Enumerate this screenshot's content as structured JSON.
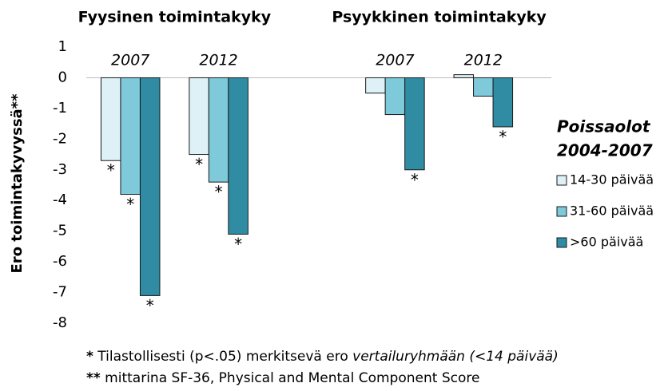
{
  "chart_data": {
    "type": "bar",
    "group_labels": [
      "Fyysinen toimintakyky",
      "Psyykkinen toimintakyky"
    ],
    "y_label": "Ero toimintakyvyssä**",
    "categories": [
      "2007",
      "2012",
      null,
      "2007",
      "2012"
    ],
    "series": [
      {
        "name": "14-30 päivää",
        "color": "#ddf1f6",
        "values": [
          -2.7,
          -2.5,
          null,
          -0.5,
          0.1
        ],
        "markers": [
          "*",
          "*",
          null,
          null,
          null
        ]
      },
      {
        "name": "31-60 päivää",
        "color": "#7ec9da",
        "values": [
          -3.8,
          -3.4,
          null,
          -1.2,
          -0.6
        ],
        "markers": [
          "*",
          "*",
          null,
          null,
          null
        ]
      },
      {
        "name": ">60 päivää",
        "color": "#2f8ca3",
        "values": [
          -7.1,
          -5.1,
          null,
          -3.0,
          -1.6
        ],
        "markers": [
          "*",
          "*",
          null,
          "*",
          "*"
        ]
      }
    ],
    "ylim": [
      -8,
      1
    ],
    "yticks": [
      -8,
      -7,
      -6,
      -5,
      -4,
      -3,
      -2,
      -1,
      0,
      1
    ],
    "legend": "right",
    "legend_title": [
      "Poissaolot",
      "2004-2007"
    ],
    "footnotes": [
      [
        "*",
        " Tilastollisesti (p<.05) merkitsevä ero ",
        "vertailuryhmään (<14 päivää)"
      ],
      [
        "**",
        " mittarina SF-36, Physical and Mental Component Score"
      ]
    ]
  }
}
